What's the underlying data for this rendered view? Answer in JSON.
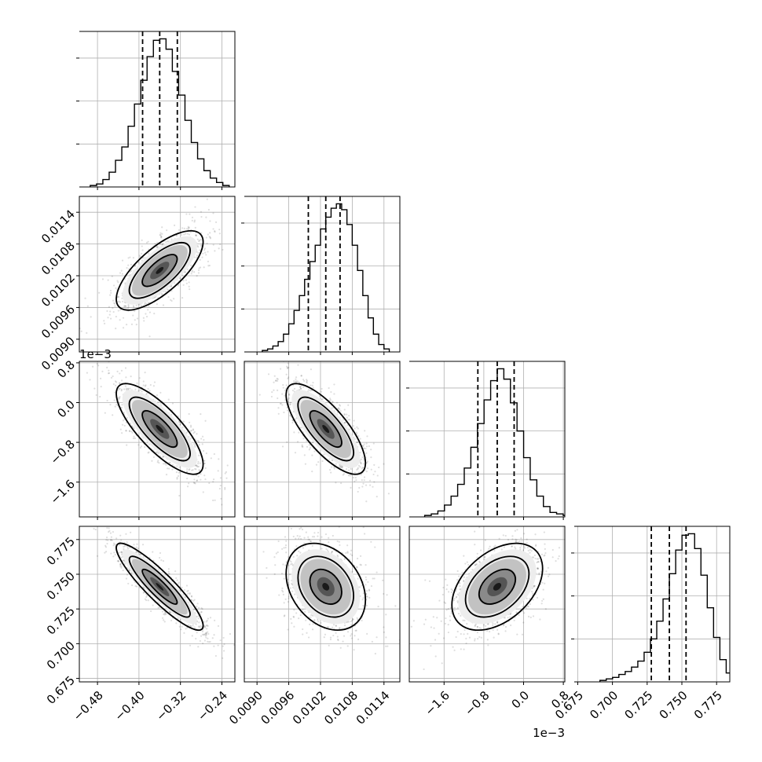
{
  "chart_data": {
    "type": "corner",
    "title": "",
    "parameters": [
      {
        "range": [
          -0.515,
          -0.215
        ],
        "ticks": [
          -0.48,
          -0.4,
          -0.32,
          -0.24
        ],
        "tick_labels": [
          "−0.48",
          "−0.40",
          "−0.32",
          "−0.24"
        ],
        "quantiles": [
          -0.393,
          -0.36,
          -0.326
        ],
        "offset_label": ""
      },
      {
        "range": [
          0.00876,
          0.0117
        ],
        "ticks": [
          0.009,
          0.0096,
          0.0102,
          0.0108,
          0.0114
        ],
        "tick_labels": [
          "0.0090",
          "0.0096",
          "0.0102",
          "0.0108",
          "0.0114"
        ],
        "quantiles": [
          0.00997,
          0.0103,
          0.01057
        ],
        "offset_label": ""
      },
      {
        "range": [
          -2.3,
          0.83
        ],
        "ticks": [
          -1.6,
          -0.8,
          0.0,
          0.8
        ],
        "tick_labels": [
          "−1.6",
          "−0.8",
          "0.0",
          "0.8"
        ],
        "quantiles": [
          -0.92,
          -0.53,
          -0.19
        ],
        "offset_label": "1e−3"
      },
      {
        "range": [
          0.6725,
          0.7845
        ],
        "ticks": [
          0.675,
          0.7,
          0.725,
          0.75,
          0.775
        ],
        "tick_labels": [
          "0.675",
          "0.700",
          "0.725",
          "0.750",
          "0.775"
        ],
        "quantiles": [
          0.728,
          0.741,
          0.753
        ],
        "offset_label": ""
      }
    ],
    "histograms": [
      [
        0.01,
        0.02,
        0.05,
        0.1,
        0.18,
        0.27,
        0.41,
        0.56,
        0.72,
        0.88,
        0.99,
        1.0,
        0.93,
        0.78,
        0.62,
        0.45,
        0.3,
        0.19,
        0.11,
        0.06,
        0.03,
        0.01
      ],
      [
        0.01,
        0.02,
        0.04,
        0.07,
        0.12,
        0.19,
        0.28,
        0.38,
        0.49,
        0.61,
        0.72,
        0.83,
        0.91,
        0.97,
        1.0,
        0.96,
        0.86,
        0.72,
        0.55,
        0.38,
        0.23,
        0.12,
        0.05,
        0.02
      ],
      [
        0.01,
        0.02,
        0.04,
        0.08,
        0.14,
        0.22,
        0.33,
        0.47,
        0.63,
        0.79,
        0.92,
        1.0,
        0.93,
        0.77,
        0.58,
        0.4,
        0.25,
        0.14,
        0.07,
        0.03,
        0.02,
        0.01
      ],
      [
        0.01,
        0.02,
        0.03,
        0.05,
        0.07,
        0.1,
        0.14,
        0.2,
        0.29,
        0.41,
        0.56,
        0.73,
        0.89,
        0.99,
        1.0,
        0.9,
        0.72,
        0.5,
        0.3,
        0.15,
        0.06,
        0.02
      ]
    ],
    "correlations": [
      [
        1.0,
        0.72,
        -0.78,
        -0.9
      ],
      [
        0.72,
        1.0,
        -0.75,
        -0.3
      ],
      [
        -0.78,
        -0.75,
        1.0,
        0.42
      ],
      [
        -0.9,
        -0.3,
        0.42,
        1.0
      ]
    ],
    "grid": true
  }
}
